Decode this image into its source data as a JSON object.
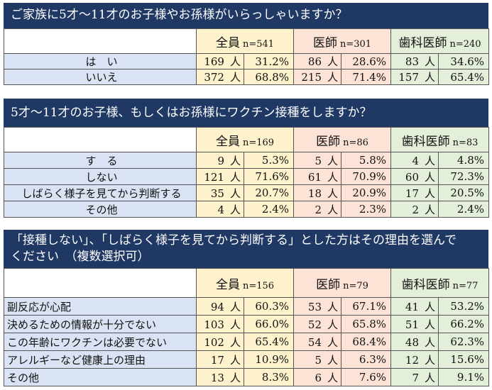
{
  "groups": [
    {
      "name": "全員"
    },
    {
      "name": "医師"
    },
    {
      "name": "歯科医師"
    }
  ],
  "unit": "人",
  "q1": {
    "title": "ご家族に5才～11才のお子様やお孫様がいらっしゃいますか？",
    "n": [
      "n=541",
      "n=301",
      "n=240"
    ],
    "rows": [
      {
        "label": "は　い",
        "vals": [
          [
            "169",
            "31.2%"
          ],
          [
            "86",
            "28.6%"
          ],
          [
            "83",
            "34.6%"
          ]
        ]
      },
      {
        "label": "いいえ",
        "vals": [
          [
            "372",
            "68.8%"
          ],
          [
            "215",
            "71.4%"
          ],
          [
            "157",
            "65.4%"
          ]
        ]
      }
    ]
  },
  "q2": {
    "title": "5才～11才のお子様、もしくはお孫様にワクチン接種をしますか？",
    "n": [
      "n=169",
      "n=86",
      "n=83"
    ],
    "rows": [
      {
        "label": "す　る",
        "vals": [
          [
            "9",
            "5.3%"
          ],
          [
            "5",
            "5.8%"
          ],
          [
            "4",
            "4.8%"
          ]
        ]
      },
      {
        "label": "しない",
        "vals": [
          [
            "121",
            "71.6%"
          ],
          [
            "61",
            "70.9%"
          ],
          [
            "60",
            "72.3%"
          ]
        ]
      },
      {
        "label": "しばらく様子を見てから判断する",
        "vals": [
          [
            "35",
            "20.7%"
          ],
          [
            "18",
            "20.9%"
          ],
          [
            "17",
            "20.5%"
          ]
        ]
      },
      {
        "label": "その他",
        "vals": [
          [
            "4",
            "2.4%"
          ],
          [
            "2",
            "2.3%"
          ],
          [
            "2",
            "2.4%"
          ]
        ]
      }
    ]
  },
  "q3": {
    "title_line1": "「接種しない」、「しばらく様子を見てから判断する」とした方はその理由を選んで",
    "title_line2": "ください　（複数選択可）",
    "n": [
      "n=156",
      "n=79",
      "n=77"
    ],
    "rows": [
      {
        "label": "副反応が心配",
        "vals": [
          [
            "94",
            "60.3%"
          ],
          [
            "53",
            "67.1%"
          ],
          [
            "41",
            "53.2%"
          ]
        ]
      },
      {
        "label": "決めるための情報が十分でない",
        "vals": [
          [
            "103",
            "66.0%"
          ],
          [
            "52",
            "65.8%"
          ],
          [
            "51",
            "66.2%"
          ]
        ]
      },
      {
        "label": "この年齢にワクチンは必要でない",
        "vals": [
          [
            "102",
            "65.4%"
          ],
          [
            "54",
            "68.4%"
          ],
          [
            "48",
            "62.3%"
          ]
        ]
      },
      {
        "label": "アレルギーなど健康上の理由",
        "vals": [
          [
            "17",
            "10.9%"
          ],
          [
            "5",
            "6.3%"
          ],
          [
            "12",
            "15.6%"
          ]
        ]
      },
      {
        "label": "その他",
        "vals": [
          [
            "13",
            "8.3%"
          ],
          [
            "6",
            "7.6%"
          ],
          [
            "7",
            "9.1%"
          ]
        ]
      }
    ]
  }
}
